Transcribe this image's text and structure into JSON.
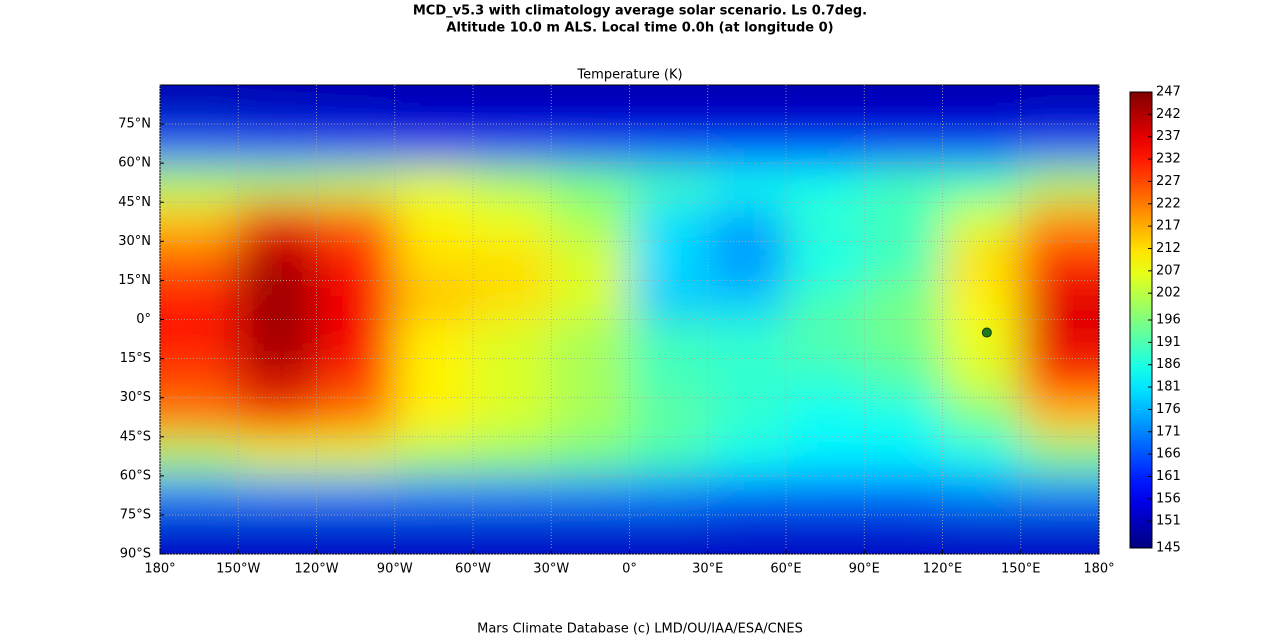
{
  "chart_data": {
    "type": "heatmap",
    "title": "MCD_v5.3 with climatology average solar scenario. Ls 0.7deg.",
    "subtitle": "Altitude 10.0 m ALS. Local time 0.0h (at longitude 0)",
    "plot_title": "Temperature (K)",
    "footer": "Mars Climate Database (c) LMD/OU/IAA/ESA/CNES",
    "colormap": "jet",
    "grid": true,
    "x": [
      -165,
      -135,
      -105,
      -75,
      -45,
      -15,
      15,
      45,
      75,
      105,
      135,
      165
    ],
    "y": [
      82.5,
      67.5,
      52.5,
      37.5,
      22.5,
      7.5,
      -7.5,
      -22.5,
      -37.5,
      -52.5,
      -67.5,
      -82.5
    ],
    "values": [
      [
        150,
        150,
        150,
        150,
        150,
        150,
        150,
        150,
        150,
        150,
        150,
        150
      ],
      [
        165,
        163,
        162,
        160,
        160,
        160,
        160,
        160,
        160,
        160,
        160,
        162
      ],
      [
        200,
        200,
        202,
        205,
        200,
        195,
        190,
        185,
        185,
        190,
        190,
        200
      ],
      [
        215,
        235,
        225,
        210,
        207,
        200,
        180,
        175,
        188,
        190,
        205,
        220
      ],
      [
        225,
        243,
        232,
        212,
        212,
        205,
        180,
        172,
        185,
        190,
        212,
        230
      ],
      [
        232,
        244,
        235,
        215,
        212,
        205,
        178,
        178,
        190,
        195,
        210,
        237
      ],
      [
        232,
        244,
        235,
        210,
        205,
        200,
        190,
        188,
        192,
        195,
        207,
        237
      ],
      [
        228,
        240,
        230,
        210,
        205,
        200,
        190,
        188,
        188,
        192,
        205,
        230
      ],
      [
        222,
        228,
        222,
        210,
        205,
        200,
        193,
        188,
        184,
        185,
        195,
        215
      ],
      [
        200,
        205,
        205,
        200,
        198,
        195,
        190,
        185,
        182,
        182,
        185,
        195
      ],
      [
        170,
        170,
        170,
        170,
        170,
        170,
        170,
        168,
        168,
        168,
        170,
        170
      ],
      [
        152,
        152,
        152,
        152,
        152,
        152,
        152,
        152,
        152,
        152,
        152,
        152
      ]
    ],
    "xlim": [
      -180,
      180
    ],
    "ylim": [
      -90,
      90
    ],
    "xticks": [
      {
        "value": -180,
        "label": "180°"
      },
      {
        "value": -150,
        "label": "150°W"
      },
      {
        "value": -120,
        "label": "120°W"
      },
      {
        "value": -90,
        "label": "90°W"
      },
      {
        "value": -60,
        "label": "60°W"
      },
      {
        "value": -30,
        "label": "30°W"
      },
      {
        "value": 0,
        "label": "0°"
      },
      {
        "value": 30,
        "label": "30°E"
      },
      {
        "value": 60,
        "label": "60°E"
      },
      {
        "value": 90,
        "label": "90°E"
      },
      {
        "value": 120,
        "label": "120°E"
      },
      {
        "value": 150,
        "label": "150°E"
      },
      {
        "value": 180,
        "label": "180°"
      }
    ],
    "yticks": [
      {
        "value": 75,
        "label": "75°N"
      },
      {
        "value": 60,
        "label": "60°N"
      },
      {
        "value": 45,
        "label": "45°N"
      },
      {
        "value": 30,
        "label": "30°N"
      },
      {
        "value": 15,
        "label": "15°N"
      },
      {
        "value": 0,
        "label": "0°"
      },
      {
        "value": -15,
        "label": "15°S"
      },
      {
        "value": -30,
        "label": "30°S"
      },
      {
        "value": -45,
        "label": "45°S"
      },
      {
        "value": -60,
        "label": "60°S"
      },
      {
        "value": -75,
        "label": "75°S"
      },
      {
        "value": -90,
        "label": "90°S"
      }
    ],
    "colorbar": {
      "lim": [
        145,
        247
      ],
      "ticks": [
        145,
        151,
        156,
        161,
        166,
        171,
        176,
        181,
        186,
        191,
        196,
        202,
        207,
        212,
        217,
        222,
        227,
        232,
        237,
        242,
        247
      ]
    },
    "marker": {
      "x": 137,
      "y": -5,
      "color": "#1f7a1f"
    }
  }
}
